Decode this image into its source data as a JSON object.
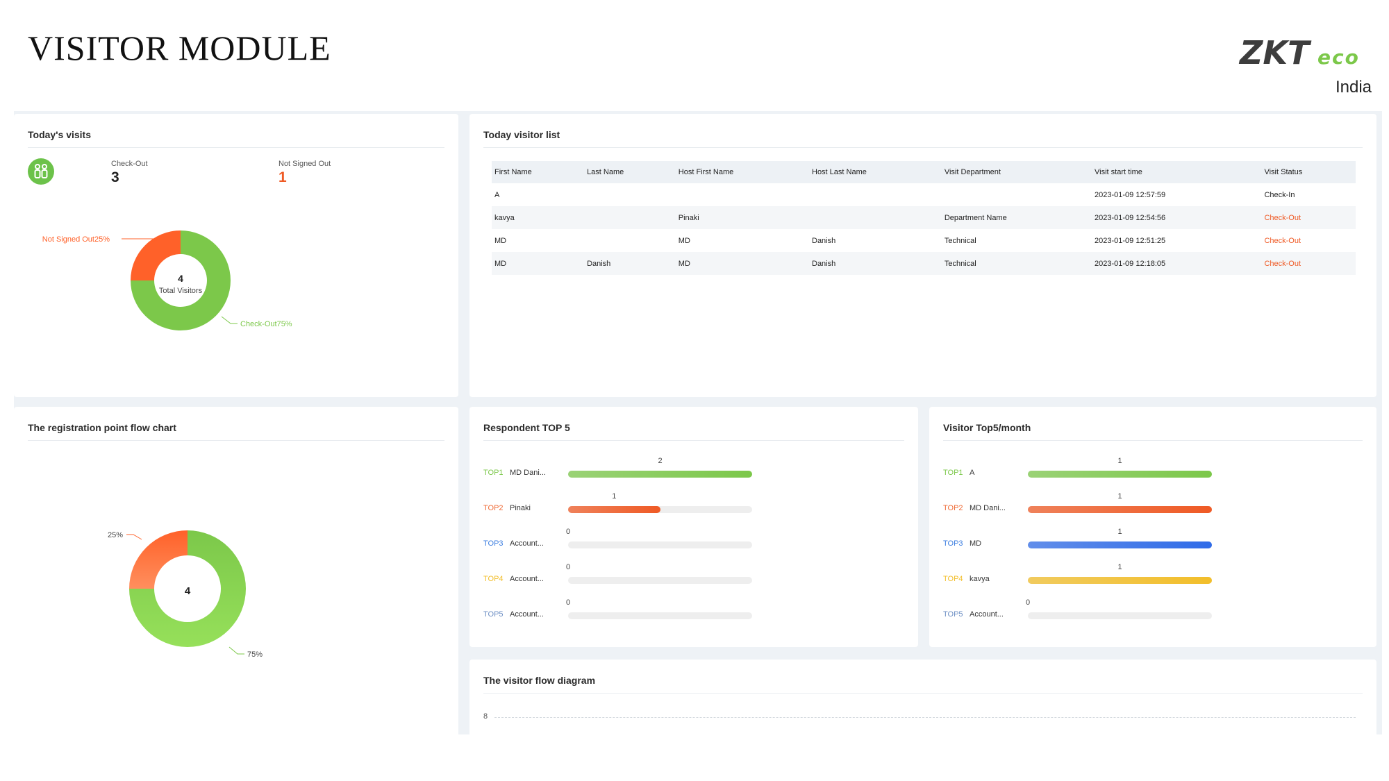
{
  "header": {
    "title": "VISITOR MODULE",
    "logo_text": "ZKTeco",
    "logo_country": "India"
  },
  "todays_visits": {
    "title": "Today's visits",
    "checkout_label": "Check-Out",
    "checkout_value": "3",
    "not_signed_label": "Not Signed Out",
    "not_signed_value": "1",
    "donut_center_value": "4",
    "donut_center_label": "Total Visitors",
    "label_not_signed": "Not Signed Out25%",
    "label_checkout": "Check-Out75%"
  },
  "visitor_list": {
    "title": "Today visitor list",
    "columns": [
      "First Name",
      "Last Name",
      "Host First Name",
      "Host Last Name",
      "Visit Department",
      "Visit start time",
      "Visit Status"
    ],
    "rows": [
      [
        "A",
        "",
        "",
        "",
        "",
        "2023-01-09 12:57:59",
        "Check-In"
      ],
      [
        "kavya",
        "",
        "Pinaki",
        "",
        "Department Name",
        "2023-01-09 12:54:56",
        "Check-Out"
      ],
      [
        "MD",
        "",
        "MD",
        "Danish",
        "Technical",
        "2023-01-09 12:51:25",
        "Check-Out"
      ],
      [
        "MD",
        "Danish",
        "MD",
        "Danish",
        "Technical",
        "2023-01-09 12:18:05",
        "Check-Out"
      ]
    ]
  },
  "registration_flow": {
    "title": "The registration point flow chart",
    "center_value": "4",
    "label_small": "25%",
    "label_large": "75%"
  },
  "respondent_top5": {
    "title": "Respondent TOP 5",
    "max": 2,
    "items": [
      {
        "rank": "TOP1",
        "name": "MD Dani...",
        "value": 2,
        "rank_color": "#7cc84a",
        "bar_color": "#7cc84a"
      },
      {
        "rank": "TOP2",
        "name": "Pinaki",
        "value": 1,
        "rank_color": "#ef6a35",
        "bar_color": "#ef5a25"
      },
      {
        "rank": "TOP3",
        "name": "Account...",
        "value": 0,
        "rank_color": "#3b7de0",
        "bar_color": "#3b7de0"
      },
      {
        "rank": "TOP4",
        "name": "Account...",
        "value": 0,
        "rank_color": "#f2be2a",
        "bar_color": "#f2be2a"
      },
      {
        "rank": "TOP5",
        "name": "Account...",
        "value": 0,
        "rank_color": "#6d8fc4",
        "bar_color": "#6d8fc4"
      }
    ]
  },
  "visitor_top5_month": {
    "title": "Visitor Top5/month",
    "max": 1,
    "items": [
      {
        "rank": "TOP1",
        "name": "A",
        "value": 1,
        "rank_color": "#7cc84a",
        "bar_color": "#7cc84a"
      },
      {
        "rank": "TOP2",
        "name": "MD Dani...",
        "value": 1,
        "rank_color": "#ef6a35",
        "bar_color": "#ef5a25"
      },
      {
        "rank": "TOP3",
        "name": "MD",
        "value": 1,
        "rank_color": "#3b7de0",
        "bar_color": "#2f6be8"
      },
      {
        "rank": "TOP4",
        "name": "kavya",
        "value": 1,
        "rank_color": "#f2be2a",
        "bar_color": "#f2be2a"
      },
      {
        "rank": "TOP5",
        "name": "Account...",
        "value": 0,
        "rank_color": "#6d8fc4",
        "bar_color": "#6d8fc4"
      }
    ]
  },
  "visitor_flow": {
    "title": "The visitor flow diagram",
    "y_tick": "8"
  },
  "colors": {
    "green": "#7cc84a",
    "orange": "#ff6129",
    "check_out_status": "#ef5a25"
  },
  "chart_data": [
    {
      "type": "pie",
      "title": "Today's visits",
      "categories": [
        "Check-Out",
        "Not Signed Out"
      ],
      "values": [
        75,
        25
      ],
      "total": 4
    },
    {
      "type": "pie",
      "title": "The registration point flow chart",
      "categories": [
        "",
        ""
      ],
      "values": [
        75,
        25
      ],
      "total": 4
    },
    {
      "type": "bar",
      "title": "Respondent TOP 5",
      "categories": [
        "MD Dani...",
        "Pinaki",
        "Account...",
        "Account...",
        "Account..."
      ],
      "values": [
        2,
        1,
        0,
        0,
        0
      ]
    },
    {
      "type": "bar",
      "title": "Visitor Top5/month",
      "categories": [
        "A",
        "MD Dani...",
        "MD",
        "kavya",
        "Account..."
      ],
      "values": [
        1,
        1,
        1,
        1,
        0
      ]
    }
  ]
}
